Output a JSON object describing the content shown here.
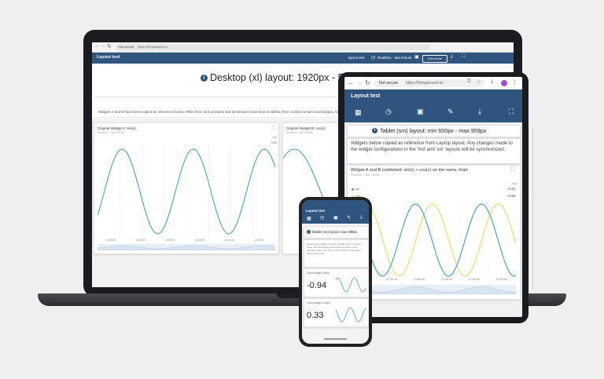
{
  "laptop": {
    "browser": {
      "not_secure": "Not secure",
      "url": "https://thingsboard.io/"
    },
    "app": {
      "title": "Layout test",
      "layout_select": "layout test",
      "realtime": "Realtime - last minute",
      "edit_mode": "Edit mode"
    },
    "headline": "Desktop (xl) layout: 1920px - 5",
    "description": "Widgets A and B have been copied as references below. While their card positions and dimensions have been modified, their content remains unchanged. Any changes",
    "widget_a": {
      "title": "Original Widget A: sin(x)",
      "subtitle": "Realtime - last minute",
      "axis_label": "Avg",
      "value": "0.94"
    },
    "widget_b": {
      "title": "Original Widget B: cos(x)",
      "subtitle": "Realtime - last minute"
    },
    "x_ticks": [
      "12:06:00",
      "12:06:10",
      "12:06:20",
      "12:06:30",
      "12:06:40",
      "12:06:50"
    ]
  },
  "tablet": {
    "browser": {
      "not_secure": "Not secure",
      "url": "https://thingsboard.io/"
    },
    "app": {
      "title": "Layout test"
    },
    "headline": "Tablet (sm) layout: min 600px - max 959px",
    "description": "Widgets below copied as reference from Laptop layout. Any changes made to the widget configurations in the 'md' and 'sm' layouts will be synchronized.",
    "widget": {
      "title": "Widget A and B combined: sin(x) + cos(x) on the same chart",
      "subtitle": "Realtime - last minute",
      "axis_label": "Avg",
      "legend": [
        {
          "name": "sin",
          "value": "-0.22"
        },
        {
          "name": "cos",
          "value": "-0.94"
        }
      ]
    },
    "x_ticks": [
      "12:06:00",
      "12:06:10",
      "12:06:20",
      "12:06:30",
      "12:06:40",
      "12:06:50"
    ]
  },
  "phone": {
    "app": {
      "title": "Layout test"
    },
    "headline": "Mobile (xs) layout: max 599px",
    "description": "Various card widgets on below. Smaller version of these views. The card widget cannot have the same value, changes made in the form of other layouts to the height effect these cards.",
    "card_a": {
      "label": "Card widget: sin(x)",
      "value": "-0.94"
    },
    "card_b": {
      "label": "Card widget: cos(x)",
      "value": "0.33"
    }
  },
  "colors": {
    "appbar": "#2f557f",
    "sin": "#4aa3c9",
    "cos": "#e6df6c",
    "info": "#2f557f"
  },
  "icons": [
    "dashboard-icon",
    "clock-icon",
    "image-icon",
    "pencil-icon",
    "download-icon",
    "fullscreen-icon",
    "info-icon"
  ]
}
